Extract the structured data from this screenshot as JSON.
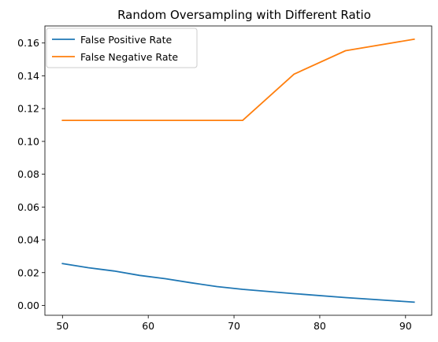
{
  "chart_data": {
    "type": "line",
    "title": "Random Oversampling with Different Ratio",
    "xlabel": "",
    "ylabel": "",
    "x": [
      50,
      53,
      56,
      59,
      62,
      65,
      68,
      71,
      77,
      83,
      91
    ],
    "series": [
      {
        "name": "False Positive Rate",
        "color": "#1f77b4",
        "values": [
          0.0255,
          0.023,
          0.021,
          0.0183,
          0.0163,
          0.0138,
          0.0115,
          0.0098,
          0.0072,
          0.0048,
          0.002
        ]
      },
      {
        "name": "False Negative Rate",
        "color": "#ff7f0e",
        "values": [
          0.1128,
          0.1128,
          0.1128,
          0.1128,
          0.1128,
          0.1128,
          0.1128,
          0.1128,
          0.141,
          0.1553,
          0.1623
        ]
      }
    ],
    "xlim": [
      47.95,
      93.05
    ],
    "ylim": [
      -0.006,
      0.1704
    ],
    "xticks": [
      50,
      60,
      70,
      80,
      90
    ],
    "yticks": [
      0.0,
      0.02,
      0.04,
      0.06,
      0.08,
      0.1,
      0.12,
      0.14,
      0.16
    ],
    "xtick_labels": [
      "50",
      "60",
      "70",
      "80",
      "90"
    ],
    "ytick_labels": [
      "0.00",
      "0.02",
      "0.04",
      "0.06",
      "0.08",
      "0.10",
      "0.12",
      "0.14",
      "0.16"
    ],
    "grid": false,
    "legend_position": "top-left"
  }
}
